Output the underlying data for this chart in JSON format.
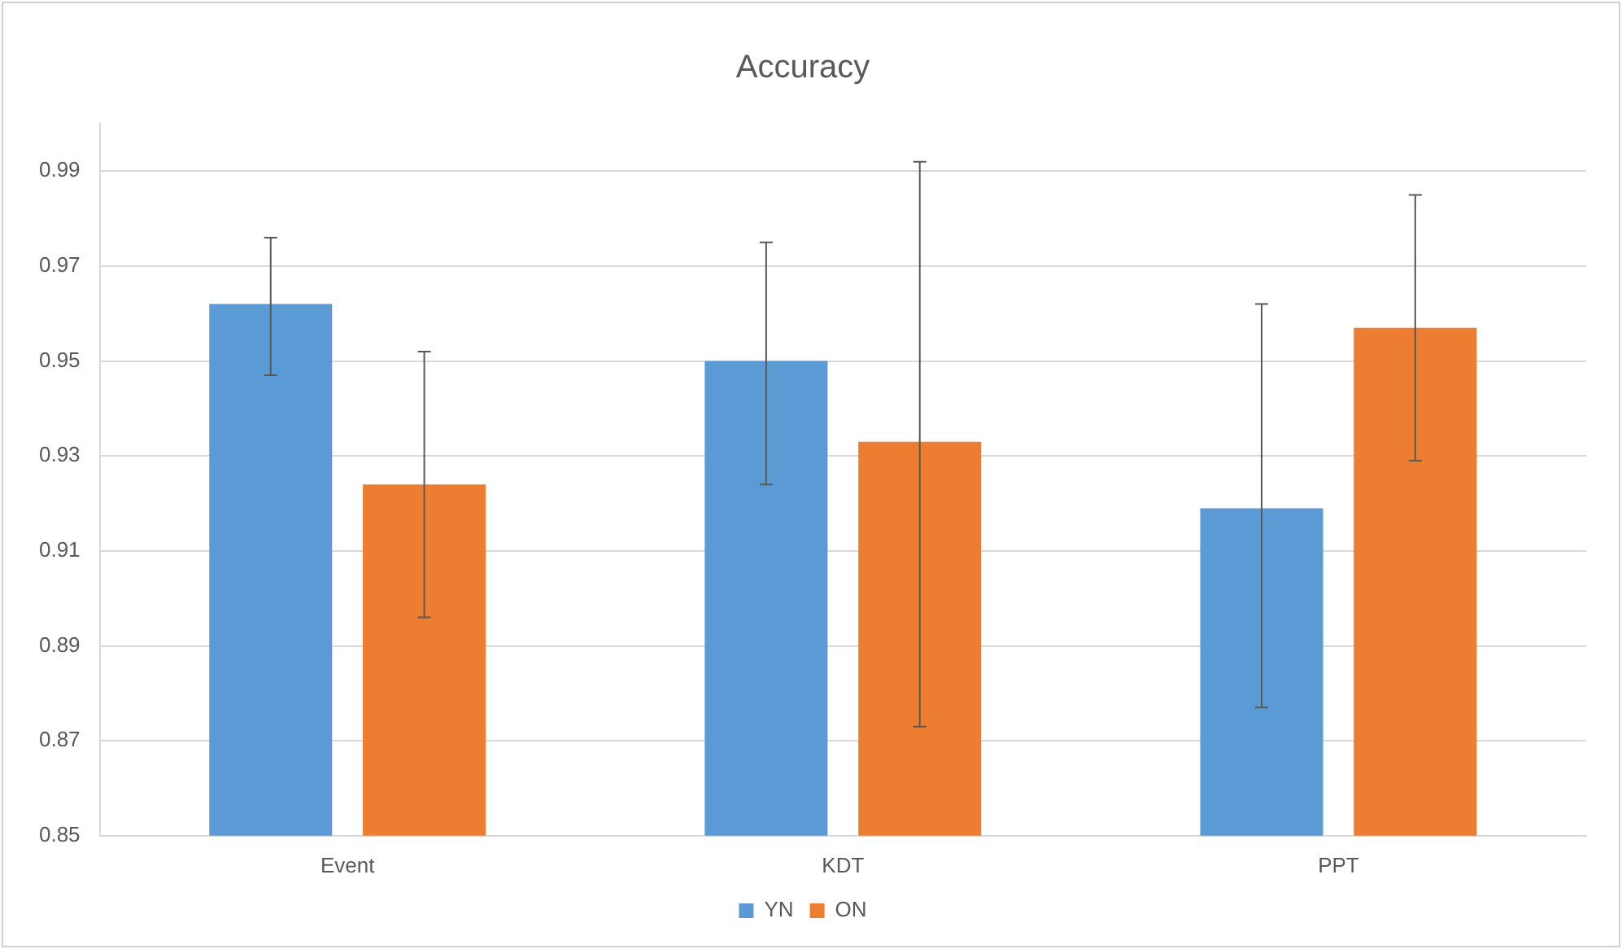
{
  "chart_data": {
    "type": "bar",
    "title": "Accuracy",
    "categories": [
      "Event",
      "KDT",
      "PPT"
    ],
    "series": [
      {
        "name": "YN",
        "color": "#5b9bd5",
        "values": [
          0.962,
          0.95,
          0.919
        ],
        "errors": [
          [
            0.947,
            0.976
          ],
          [
            0.924,
            0.975
          ],
          [
            0.877,
            0.962
          ]
        ]
      },
      {
        "name": "ON",
        "color": "#ed7d31",
        "values": [
          0.924,
          0.933,
          0.957
        ],
        "errors": [
          [
            0.896,
            0.952
          ],
          [
            0.873,
            0.992
          ],
          [
            0.929,
            0.985
          ]
        ]
      }
    ],
    "ylim": [
      0.85,
      1.0
    ],
    "yticks": [
      0.85,
      0.87,
      0.89,
      0.91,
      0.93,
      0.95,
      0.97,
      0.99
    ],
    "grid": "y",
    "legend": "bottom"
  }
}
